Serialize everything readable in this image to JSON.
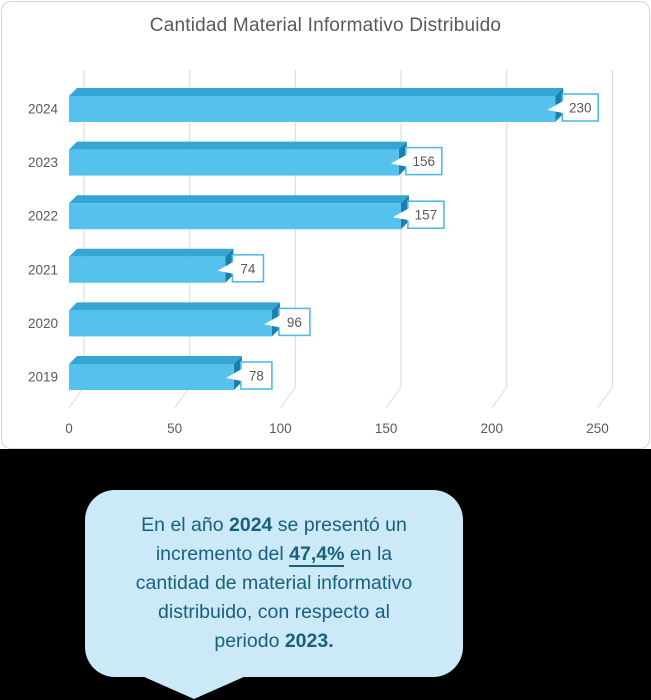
{
  "chart_data": {
    "type": "bar",
    "orientation": "horizontal",
    "style": "3d",
    "title": "Cantidad Material Informativo Distribuido",
    "categories": [
      "2024",
      "2023",
      "2022",
      "2021",
      "2020",
      "2019"
    ],
    "values": [
      230,
      156,
      157,
      74,
      96,
      78
    ],
    "x_ticks": [
      "0",
      "50",
      "100",
      "150",
      "200",
      "250"
    ],
    "x_tick_values": [
      0,
      50,
      100,
      150,
      200,
      250
    ],
    "xlim": [
      0,
      250
    ],
    "xlabel": "",
    "ylabel": "",
    "grid": true,
    "legend": false,
    "data_labels": true,
    "colors": {
      "bar_front": "#55C2ED",
      "bar_top": "#35A6D4",
      "bar_side": "#1A80B2",
      "gridline": "#D9D9D9",
      "axis_text": "#595959",
      "label_box_fill": "#FFFFFF",
      "label_box_border": "#4FBCE8",
      "label_text": "#595959",
      "title_text": "#595959"
    }
  },
  "callout": {
    "full_text": "En el año 2024 se presentó un incremento del 47,4% en la cantidad de material informativo distribuido, con respecto al periodo 2023.",
    "lines": [
      [
        {
          "t": "En el año "
        },
        {
          "t": "2024",
          "b": true
        },
        {
          "t": " se presentó un"
        }
      ],
      [
        {
          "t": "incremento del "
        },
        {
          "t": "47,4%",
          "b": true,
          "u": true
        },
        {
          "t": " en la"
        }
      ],
      [
        {
          "t": "cantidad de material informativo"
        }
      ],
      [
        {
          "t": "distribuido, con respecto al"
        }
      ],
      [
        {
          "t": "periodo "
        },
        {
          "t": "2023.",
          "b": true
        }
      ]
    ],
    "colors": {
      "bubble_bg": "#CBE9F7",
      "text": "#19607E"
    }
  }
}
